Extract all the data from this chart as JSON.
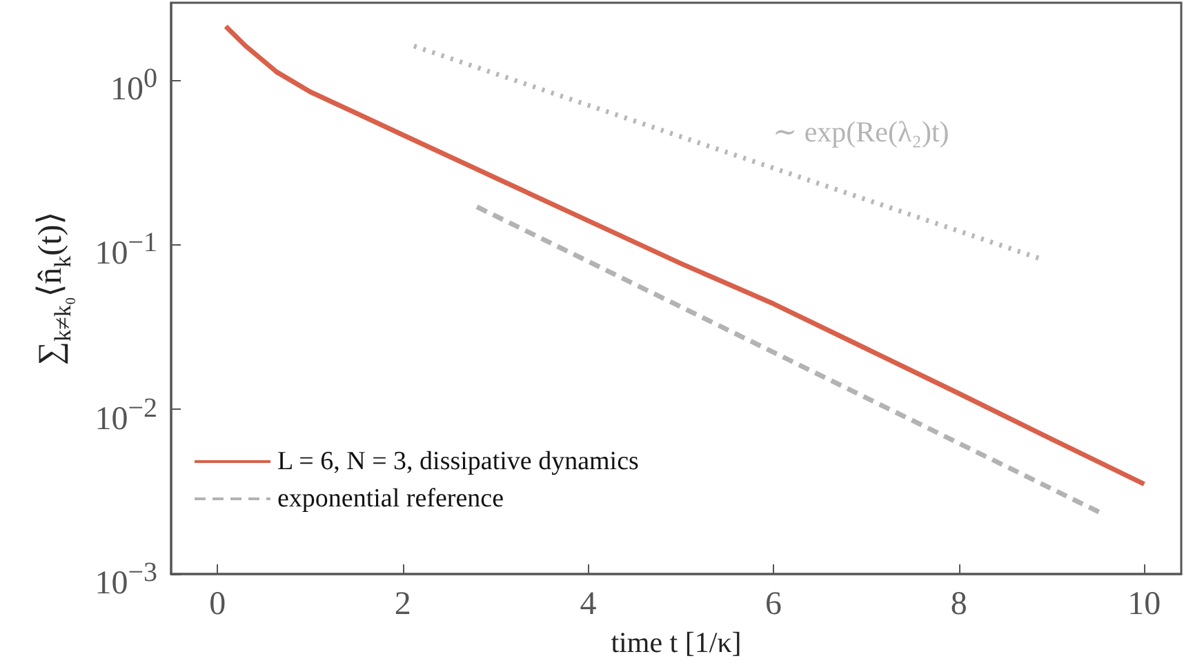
{
  "chart_data": {
    "type": "line",
    "xlabel": "time t [1/κ]",
    "ylabel": "∑$_{k≠k₀}$⟨n̂$_{k}$(t)⟩",
    "log": "y",
    "xlim": [
      -0.5,
      10.4
    ],
    "xticks": [
      0,
      2,
      4,
      6,
      8,
      10
    ],
    "ylim": [
      0.001,
      2.95
    ],
    "yticks": [
      {
        "value": 0.001,
        "label": "10$^{−3}$"
      },
      {
        "value": 0.01,
        "label": "10$^{−2}$"
      },
      {
        "value": 0.1,
        "label": "10$^{−1}$"
      },
      {
        "value": 1,
        "label": "10$^{0}$"
      }
    ],
    "grid": false,
    "legend": "bottom left",
    "marker": "none",
    "annotations": [
      "∼ exp(Re(λ₂)t)"
    ],
    "series": [
      {
        "name": "L = 6, N = 3, dissipative dynamics",
        "color": "#d9604a",
        "line_style": "solid",
        "x": [
          0.09,
          0.3,
          0.64,
          1,
          2,
          3,
          4,
          5,
          6,
          7,
          8,
          9,
          10
        ],
        "values": [
          2.12,
          1.62,
          1.12,
          0.85,
          0.465,
          0.255,
          0.14,
          0.077,
          0.0438,
          0.0234,
          0.0125,
          0.0066,
          0.00352
        ]
      },
      {
        "name": "exponential reference",
        "color": "#b3b3b3",
        "line_style": "dashed",
        "x": [
          2.8,
          9.56
        ],
        "values": [
          0.17,
          0.00231
        ]
      },
      {
        "color": "#b8b8b8",
        "line_style": "dotted",
        "x": [
          2.12,
          8.87
        ],
        "values": [
          1.61,
          0.0826
        ]
      }
    ]
  }
}
